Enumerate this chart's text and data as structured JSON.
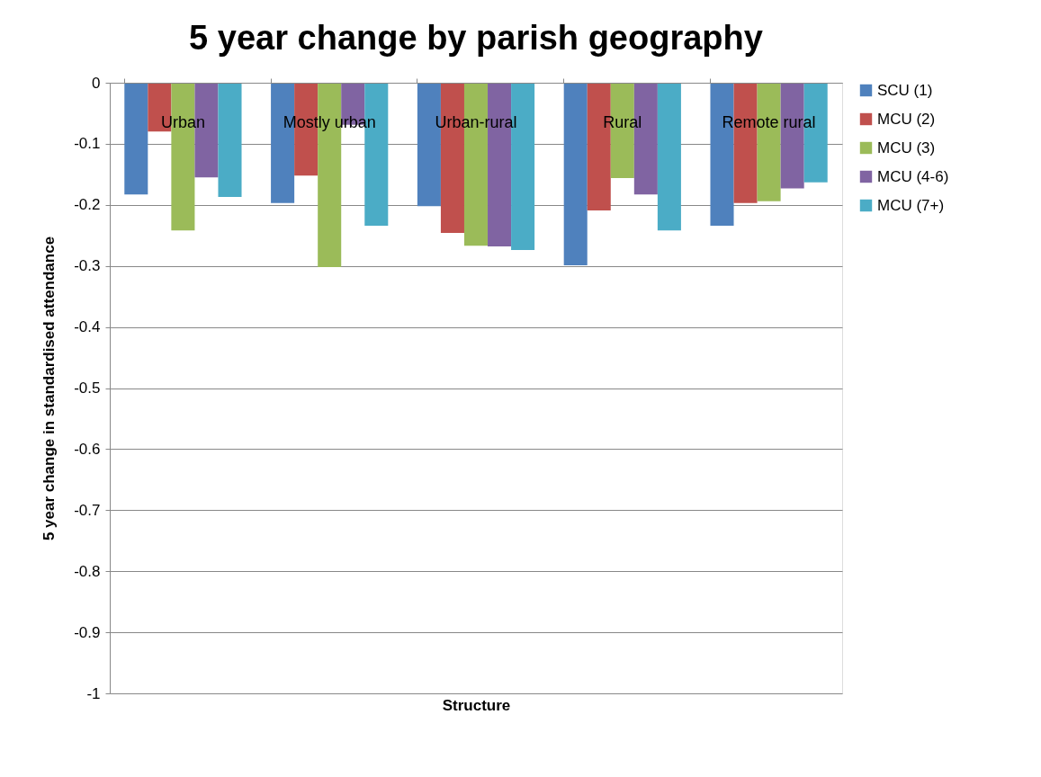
{
  "chart_data": {
    "type": "bar",
    "title": "5 year change by parish geography",
    "xlabel": "Structure",
    "ylabel": "5 year change in standardised attendance",
    "categories": [
      "Urban",
      "Mostly urban",
      "Urban-rural",
      "Rural",
      "Remote rural"
    ],
    "series": [
      {
        "name": "SCU (1)",
        "color": "#4f81bd",
        "values": [
          -0.183,
          -0.197,
          -0.202,
          -0.299,
          -0.234
        ]
      },
      {
        "name": "MCU (2)",
        "color": "#c0504d",
        "values": [
          -0.08,
          -0.152,
          -0.246,
          -0.209,
          -0.197
        ]
      },
      {
        "name": "MCU (3)",
        "color": "#9bbb59",
        "values": [
          -0.242,
          -0.302,
          -0.267,
          -0.156,
          -0.194
        ]
      },
      {
        "name": "MCU (4-6)",
        "color": "#8064a2",
        "values": [
          -0.155,
          -0.069,
          -0.268,
          -0.183,
          -0.173
        ]
      },
      {
        "name": "MCU (7+)",
        "color": "#4bacc6",
        "values": [
          -0.187,
          -0.234,
          -0.274,
          -0.242,
          -0.163
        ]
      }
    ],
    "ylim": [
      -1,
      0
    ],
    "yticks": [
      -1,
      -0.9,
      -0.8,
      -0.7,
      -0.6,
      -0.5,
      -0.4,
      -0.3,
      -0.2,
      -0.1,
      0
    ],
    "grid": "y",
    "legend": "right"
  }
}
